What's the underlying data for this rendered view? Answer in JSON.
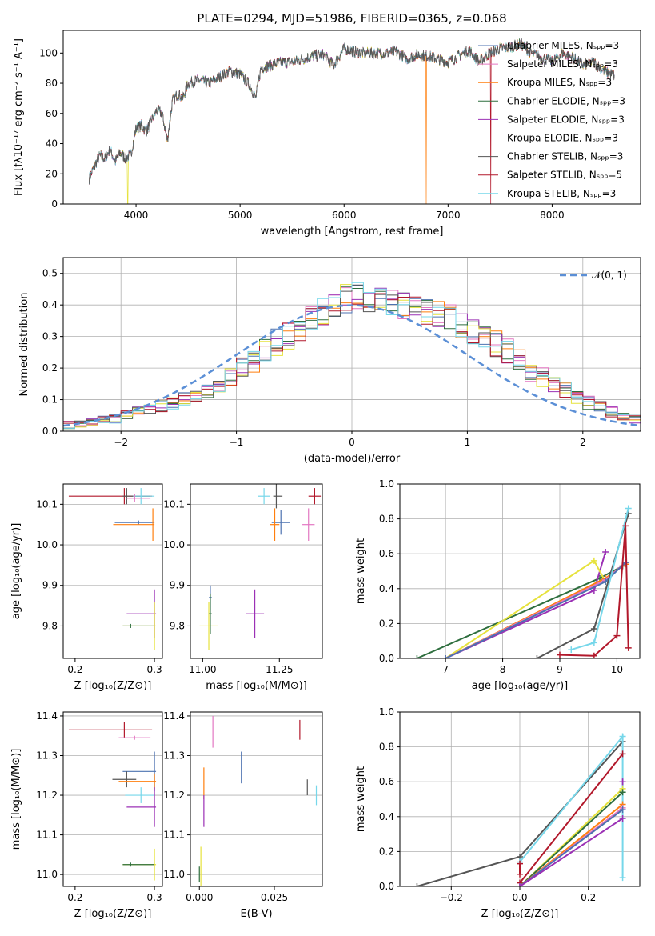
{
  "chart_data": [
    {
      "type": "line",
      "title": "PLATE=0294, MJD=51986, FIBERID=0365, z=0.068",
      "xlabel": "wavelength [Angstrom, rest frame]",
      "ylabel": "Flux [fλ10⁻¹⁷ erg cm⁻² s⁻¹ A⁻¹]",
      "xlim": [
        3300,
        8850
      ],
      "ylim": [
        0,
        115
      ],
      "xticks": [
        "4000",
        "5000",
        "6000",
        "7000",
        "8000"
      ],
      "yticks": [
        "0",
        "20",
        "40",
        "60",
        "80",
        "100"
      ],
      "legend_position": "top-right",
      "legend": [
        "Chabrier MILES, Nₛₚₚ=3",
        "Salpeter MILES, Nₛₚₚ=3",
        "Kroupa MILES, Nₛₚₚ=3",
        "Chabrier ELODIE, Nₛₚₚ=3",
        "Salpeter ELODIE, Nₛₚₚ=3",
        "Kroupa ELODIE, Nₛₚₚ=3",
        "Chabrier STELIB, Nₛₚₚ=3",
        "Salpeter STELIB, Nₛₚₚ=5",
        "Kroupa STELIB, Nₛₚₚ=3"
      ],
      "colors": [
        "#4c72b0",
        "#e377c2",
        "#ff7f0e",
        "#2e6e3e",
        "#9b30b5",
        "#e6e23c",
        "#555555",
        "#b2182b",
        "#76d7ea"
      ],
      "spectrum_x": [
        3550,
        3600,
        3650,
        3700,
        3750,
        3800,
        3850,
        3900,
        3950,
        4000,
        4050,
        4100,
        4150,
        4200,
        4250,
        4300,
        4350,
        4400,
        4450,
        4500,
        4600,
        4700,
        4800,
        4900,
        5000,
        5100,
        5150,
        5200,
        5300,
        5400,
        5500,
        5600,
        5700,
        5800,
        5900,
        6000,
        6100,
        6200,
        6300,
        6400,
        6500,
        6600,
        6700,
        6800,
        6900,
        7000,
        7100,
        7200,
        7300,
        7400,
        7500,
        7600,
        7700,
        7800,
        7900,
        8000,
        8100,
        8200,
        8300,
        8400,
        8500,
        8600
      ],
      "spectrum_y": [
        17,
        25,
        32,
        30,
        36,
        28,
        34,
        30,
        33,
        50,
        52,
        48,
        56,
        62,
        60,
        42,
        68,
        73,
        70,
        80,
        82,
        80,
        84,
        88,
        86,
        78,
        70,
        90,
        92,
        94,
        94,
        96,
        98,
        99,
        92,
        103,
        101,
        100,
        100,
        100,
        101,
        96,
        99,
        98,
        96,
        94,
        98,
        102,
        94,
        100,
        103,
        104,
        106,
        100,
        97,
        94,
        100,
        97,
        92,
        94,
        88,
        85
      ],
      "dropouts": [
        {
          "x": 3920,
          "depth_to": 0,
          "color": "#e6e23c"
        },
        {
          "x": 6790,
          "depth_to": 0,
          "color": "#ff7f0e"
        },
        {
          "x": 7410,
          "depth_to": 0,
          "color": "#b2182b"
        }
      ]
    },
    {
      "type": "line",
      "subtype": "step-histogram",
      "xlabel": "(data-model)/error",
      "ylabel": "Normed distribution",
      "xlim": [
        -2.5,
        2.5
      ],
      "ylim": [
        0,
        0.55
      ],
      "xticks": [
        "−2",
        "−1",
        "0",
        "1",
        "2"
      ],
      "yticks": [
        "0.0",
        "0.1",
        "0.2",
        "0.3",
        "0.4",
        "0.5"
      ],
      "bin_width": 0.1,
      "bin_start": -2.5,
      "legend": [
        "𝒩(0, 1)"
      ],
      "legend_position": "top-right",
      "reference_curve": "gaussian",
      "reference_color": "#5b8fd6",
      "hist_base": [
        0.02,
        0.025,
        0.03,
        0.035,
        0.04,
        0.05,
        0.06,
        0.07,
        0.08,
        0.09,
        0.1,
        0.11,
        0.13,
        0.15,
        0.17,
        0.2,
        0.22,
        0.26,
        0.28,
        0.3,
        0.33,
        0.35,
        0.38,
        0.4,
        0.42,
        0.43,
        0.42,
        0.42,
        0.41,
        0.4,
        0.39,
        0.38,
        0.37,
        0.36,
        0.34,
        0.32,
        0.3,
        0.28,
        0.25,
        0.22,
        0.19,
        0.17,
        0.15,
        0.13,
        0.11,
        0.09,
        0.075,
        0.06,
        0.05,
        0.04
      ]
    },
    {
      "type": "scatter",
      "subtype": "error-crosses",
      "xlabel": "Z [log₁₀(Z/Z⊙)]",
      "ylabel": "age  [log₁₀(age/yr)]",
      "xlim": [
        0.185,
        0.31
      ],
      "ylim": [
        9.72,
        10.15
      ],
      "xticks": [
        "0.2",
        "0.3"
      ],
      "yticks": [
        "9.8",
        "9.9",
        "10.0",
        "10.1"
      ],
      "points": [
        {
          "x": 0.262,
          "y": 10.12,
          "xerr": [
            0.07,
            0.035
          ],
          "yerr": 0.02,
          "c": 7
        },
        {
          "x": 0.265,
          "y": 10.12,
          "xerr": [
            0.005,
            0.03
          ],
          "yerr": 0.02,
          "c": 6
        },
        {
          "x": 0.283,
          "y": 10.12,
          "xerr": [
            0.01,
            0.017
          ],
          "yerr": 0.02,
          "c": 8
        },
        {
          "x": 0.275,
          "y": 10.115,
          "xerr": [
            0.01,
            0.02
          ],
          "yerr": 0.01,
          "c": 1
        },
        {
          "x": 0.28,
          "y": 10.055,
          "xerr": [
            0.03,
            0.02
          ],
          "yerr": 0.005,
          "c": 0
        },
        {
          "x": 0.298,
          "y": 10.05,
          "xerr": [
            0.05,
            0.002
          ],
          "yerr": 0.04,
          "c": 2
        },
        {
          "x": 0.3,
          "y": 9.83,
          "xerr": [
            0.035,
            0.002
          ],
          "yerr": 0.06,
          "c": 4
        },
        {
          "x": 0.3,
          "y": 9.8,
          "xerr": [
            0.04,
            0.002
          ],
          "yerr": 0.06,
          "c": 5
        },
        {
          "x": 0.27,
          "y": 9.8,
          "xerr": [
            0.01,
            0.03
          ],
          "yerr": 0.005,
          "c": 3
        }
      ]
    },
    {
      "type": "scatter",
      "subtype": "error-crosses",
      "xlabel": "mass [log₁₀(M/M⊙)]",
      "ylabel": "",
      "xlim": [
        10.96,
        11.39
      ],
      "ylim": [
        9.72,
        10.15
      ],
      "xticks": [
        "11.00",
        "11.25"
      ],
      "yticks": [
        "9.8",
        "9.9",
        "10.0",
        "10.1"
      ],
      "points": [
        {
          "x": 11.365,
          "y": 10.12,
          "xerr": [
            0.02,
            0.02
          ],
          "yerr": 0.02,
          "c": 7
        },
        {
          "x": 11.24,
          "y": 10.12,
          "xerr": [
            0.01,
            0.02
          ],
          "yerr": 0.03,
          "c": 6
        },
        {
          "x": 11.2,
          "y": 10.12,
          "xerr": [
            0.02,
            0.02
          ],
          "yerr": 0.02,
          "c": 8
        },
        {
          "x": 11.345,
          "y": 10.05,
          "xerr": [
            0.02,
            0.02
          ],
          "yerr": 0.04,
          "c": 1
        },
        {
          "x": 11.255,
          "y": 10.055,
          "xerr": [
            0.03,
            0.03
          ],
          "yerr": 0.03,
          "c": 0
        },
        {
          "x": 11.235,
          "y": 10.05,
          "xerr": [
            0.015,
            0.015
          ],
          "yerr": 0.04,
          "c": 2
        },
        {
          "x": 11.17,
          "y": 9.83,
          "xerr": [
            0.03,
            0.03
          ],
          "yerr": 0.06,
          "c": 4
        },
        {
          "x": 11.025,
          "y": 9.87,
          "xerr": [
            0.005,
            0.005
          ],
          "yerr": 0.03,
          "c": 0
        },
        {
          "x": 11.02,
          "y": 9.8,
          "xerr": [
            0.03,
            0.03
          ],
          "yerr": 0.06,
          "c": 5
        },
        {
          "x": 11.025,
          "y": 9.83,
          "xerr": [
            0.005,
            0.005
          ],
          "yerr": 0.05,
          "c": 3
        }
      ]
    },
    {
      "type": "line",
      "xlabel": "age  [log₁₀(age/yr)]",
      "ylabel": "mass weight",
      "xlim": [
        6.2,
        10.4
      ],
      "ylim": [
        0,
        1
      ],
      "xticks": [
        "7",
        "8",
        "9",
        "10"
      ],
      "yticks": [
        "0.0",
        "0.2",
        "0.4",
        "0.6",
        "0.8",
        "1.0"
      ],
      "grid": true,
      "series": [
        {
          "c": 3,
          "x": [
            6.5,
            9.7,
            10.1
          ],
          "y": [
            0.0,
            0.46,
            0.53
          ]
        },
        {
          "c": 4,
          "x": [
            7.0,
            9.6,
            9.8
          ],
          "y": [
            0.0,
            0.39,
            0.61
          ]
        },
        {
          "c": 5,
          "x": [
            7.0,
            9.6,
            9.8
          ],
          "y": [
            0.0,
            0.56,
            0.44
          ]
        },
        {
          "c": 2,
          "x": [
            7.0,
            9.8,
            10.15
          ],
          "y": [
            0.0,
            0.46,
            0.54
          ]
        },
        {
          "c": 1,
          "x": [
            7.0,
            9.8,
            10.15
          ],
          "y": [
            0.0,
            0.45,
            0.55
          ]
        },
        {
          "c": 0,
          "x": [
            7.0,
            9.8,
            10.15
          ],
          "y": [
            0.0,
            0.44,
            0.55
          ]
        },
        {
          "c": 6,
          "x": [
            8.6,
            9.6,
            10.2
          ],
          "y": [
            0.0,
            0.17,
            0.83
          ]
        },
        {
          "c": 8,
          "x": [
            9.2,
            9.6,
            10.2
          ],
          "y": [
            0.05,
            0.09,
            0.86
          ]
        },
        {
          "c": 7,
          "x": [
            9.0,
            9.6,
            10.0,
            10.15,
            10.2
          ],
          "y": [
            0.02,
            0.015,
            0.13,
            0.76,
            0.06
          ]
        }
      ]
    },
    {
      "type": "scatter",
      "subtype": "error-crosses",
      "xlabel": "Z [log₁₀(Z/Z⊙)]",
      "ylabel": "mass [log₁₀(M/M⊙)]",
      "xlim": [
        0.185,
        0.31
      ],
      "ylim": [
        10.97,
        11.41
      ],
      "xticks": [
        "0.2",
        "0.3"
      ],
      "yticks": [
        "11.0",
        "11.1",
        "11.2",
        "11.3",
        "11.4"
      ],
      "points": [
        {
          "x": 0.262,
          "y": 11.365,
          "xerr": [
            0.07,
            0.035
          ],
          "yerr": 0.02,
          "c": 7
        },
        {
          "x": 0.275,
          "y": 11.345,
          "xerr": [
            0.02,
            0.02
          ],
          "yerr": 0.005,
          "c": 1
        },
        {
          "x": 0.3,
          "y": 11.26,
          "xerr": [
            0.04,
            0.002
          ],
          "yerr": 0.05,
          "c": 0
        },
        {
          "x": 0.265,
          "y": 11.24,
          "xerr": [
            0.018,
            0.012
          ],
          "yerr": 0.02,
          "c": 6
        },
        {
          "x": 0.3,
          "y": 11.235,
          "xerr": [
            0.045,
            0.002
          ],
          "yerr": 0.02,
          "c": 2
        },
        {
          "x": 0.283,
          "y": 11.2,
          "xerr": [
            0.02,
            0.017
          ],
          "yerr": 0.02,
          "c": 8
        },
        {
          "x": 0.3,
          "y": 11.17,
          "xerr": [
            0.035,
            0.002
          ],
          "yerr": 0.05,
          "c": 4
        },
        {
          "x": 0.3,
          "y": 11.025,
          "xerr": [
            0.04,
            0.002
          ],
          "yerr": 0.04,
          "c": 5
        },
        {
          "x": 0.27,
          "y": 11.025,
          "xerr": [
            0.01,
            0.03
          ],
          "yerr": 0.005,
          "c": 3
        }
      ]
    },
    {
      "type": "scatter",
      "subtype": "error-bars",
      "xlabel": "E(B-V)",
      "ylabel": "",
      "xlim": [
        -0.003,
        0.041
      ],
      "ylim": [
        10.97,
        11.41
      ],
      "xticks": [
        "0.000",
        "0.025"
      ],
      "yticks": [
        "11.0",
        "11.1",
        "11.2",
        "11.3",
        "11.4"
      ],
      "points": [
        {
          "x": 0.0015,
          "y": 11.23,
          "yerr": 0.04,
          "c": 2
        },
        {
          "x": 0.0045,
          "y": 11.36,
          "yerr": 0.04,
          "c": 1
        },
        {
          "x": 0.0015,
          "y": 11.16,
          "yerr": 0.04,
          "c": 4
        },
        {
          "x": 0.0005,
          "y": 11.02,
          "yerr": 0.05,
          "c": 5
        },
        {
          "x": 0.0,
          "y": 11.0,
          "yerr": 0.02,
          "c": 3
        },
        {
          "x": 0.014,
          "y": 11.27,
          "yerr": 0.04,
          "c": 0
        },
        {
          "x": 0.0335,
          "y": 11.365,
          "yerr": 0.025,
          "c": 7
        },
        {
          "x": 0.036,
          "y": 11.22,
          "yerr": 0.02,
          "c": 6
        },
        {
          "x": 0.039,
          "y": 11.2,
          "yerr": 0.025,
          "c": 8
        }
      ]
    },
    {
      "type": "line",
      "xlabel": "Z [log₁₀(Z/Z⊙)]",
      "ylabel": "mass weight",
      "xlim": [
        -0.35,
        0.35
      ],
      "ylim": [
        0,
        1
      ],
      "xticks": [
        "−0.2",
        "0.0",
        "0.2"
      ],
      "yticks": [
        "0.0",
        "0.2",
        "0.4",
        "0.6",
        "0.8",
        "1.0"
      ],
      "grid": true,
      "series": [
        {
          "c": 6,
          "x": [
            -0.3,
            0.0,
            0.3
          ],
          "y": [
            0.0,
            0.17,
            0.83
          ]
        },
        {
          "c": 8,
          "x": [
            0.0,
            0.3,
            0.3
          ],
          "y": [
            0.14,
            0.86,
            0.05
          ]
        },
        {
          "c": 7,
          "x": [
            0.0,
            0.3
          ],
          "y": [
            0.02,
            0.76
          ]
        },
        {
          "c": 7,
          "x": [
            0.0,
            0.0
          ],
          "y": [
            0.13,
            0.07
          ]
        },
        {
          "c": 5,
          "x": [
            0.0,
            0.3
          ],
          "y": [
            0.0,
            0.56
          ]
        },
        {
          "c": 3,
          "x": [
            0.0,
            0.3
          ],
          "y": [
            0.0,
            0.54
          ]
        },
        {
          "c": 2,
          "x": [
            0.0,
            0.3
          ],
          "y": [
            0.0,
            0.47
          ]
        },
        {
          "c": 1,
          "x": [
            0.0,
            0.3
          ],
          "y": [
            0.0,
            0.45
          ]
        },
        {
          "c": 0,
          "x": [
            0.0,
            0.3
          ],
          "y": [
            0.0,
            0.44
          ]
        },
        {
          "c": 4,
          "x": [
            0.0,
            0.3
          ],
          "y": [
            0.0,
            0.39
          ]
        },
        {
          "c": 4,
          "x": [
            0.3,
            0.3
          ],
          "y": [
            0.6,
            0.6
          ]
        }
      ]
    }
  ]
}
